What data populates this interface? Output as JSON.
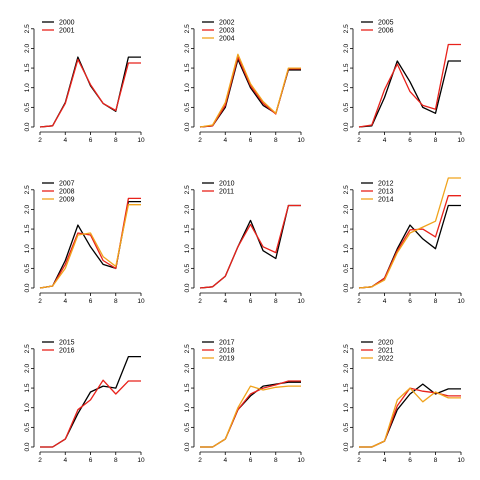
{
  "colors": {
    "black": "#000000",
    "red": "#e8221b",
    "orange": "#f0a31c"
  },
  "chart_data": [
    {
      "type": "line",
      "x": [
        2,
        3,
        4,
        5,
        6,
        7,
        8,
        9,
        10
      ],
      "xticks": [
        2,
        4,
        6,
        8,
        10
      ],
      "yticks": [
        "0.0",
        "0.5",
        "1.0",
        "1.5",
        "2.0",
        "2.5"
      ],
      "xlim": [
        2,
        10
      ],
      "ylim": [
        0,
        2.8
      ],
      "series": [
        {
          "name": "2000",
          "color": "black",
          "values": [
            0.0,
            0.03,
            0.62,
            1.78,
            1.05,
            0.6,
            0.4,
            1.78,
            1.78
          ]
        },
        {
          "name": "2001",
          "color": "red",
          "values": [
            0.0,
            0.03,
            0.6,
            1.72,
            1.08,
            0.6,
            0.42,
            1.63,
            1.63
          ]
        }
      ]
    },
    {
      "type": "line",
      "x": [
        2,
        3,
        4,
        5,
        6,
        7,
        8,
        9,
        10
      ],
      "xticks": [
        2,
        4,
        6,
        8,
        10
      ],
      "yticks": [
        "0.0",
        "0.5",
        "1.0",
        "1.5",
        "2.0",
        "2.5"
      ],
      "xlim": [
        2,
        10
      ],
      "ylim": [
        0,
        2.8
      ],
      "series": [
        {
          "name": "2002",
          "color": "black",
          "values": [
            0.0,
            0.03,
            0.5,
            1.72,
            1.0,
            0.55,
            0.35,
            1.45,
            1.45
          ]
        },
        {
          "name": "2003",
          "color": "red",
          "values": [
            0.0,
            0.03,
            0.55,
            1.78,
            1.05,
            0.6,
            0.33,
            1.48,
            1.48
          ]
        },
        {
          "name": "2004",
          "color": "orange",
          "values": [
            0.0,
            0.05,
            0.62,
            1.85,
            1.1,
            0.65,
            0.35,
            1.5,
            1.5
          ]
        }
      ]
    },
    {
      "type": "line",
      "x": [
        2,
        3,
        4,
        5,
        6,
        7,
        8,
        9,
        10
      ],
      "xticks": [
        2,
        4,
        6,
        8,
        10
      ],
      "yticks": [
        "0.0",
        "0.5",
        "1.0",
        "1.5",
        "2.0",
        "2.5"
      ],
      "xlim": [
        2,
        10
      ],
      "ylim": [
        0,
        2.8
      ],
      "series": [
        {
          "name": "2005",
          "color": "black",
          "values": [
            0.0,
            0.03,
            0.75,
            1.68,
            1.15,
            0.5,
            0.35,
            1.68,
            1.68
          ]
        },
        {
          "name": "2006",
          "color": "red",
          "values": [
            0.0,
            0.05,
            0.95,
            1.6,
            0.9,
            0.55,
            0.45,
            2.1,
            2.1
          ]
        }
      ]
    },
    {
      "type": "line",
      "x": [
        2,
        3,
        4,
        5,
        6,
        7,
        8,
        9,
        10
      ],
      "xticks": [
        2,
        4,
        6,
        8,
        10
      ],
      "yticks": [
        "0.0",
        "0.5",
        "1.0",
        "1.5",
        "2.0",
        "2.5"
      ],
      "xlim": [
        2,
        10
      ],
      "ylim": [
        0,
        2.8
      ],
      "series": [
        {
          "name": "2007",
          "color": "black",
          "values": [
            0.0,
            0.05,
            0.7,
            1.6,
            1.05,
            0.6,
            0.5,
            2.2,
            2.2
          ]
        },
        {
          "name": "2008",
          "color": "red",
          "values": [
            0.0,
            0.05,
            0.6,
            1.4,
            1.35,
            0.7,
            0.5,
            2.28,
            2.28
          ]
        },
        {
          "name": "2009",
          "color": "orange",
          "values": [
            0.0,
            0.05,
            0.5,
            1.35,
            1.4,
            0.8,
            0.55,
            2.12,
            2.12
          ]
        }
      ]
    },
    {
      "type": "line",
      "x": [
        2,
        3,
        4,
        5,
        6,
        7,
        8,
        9,
        10
      ],
      "xticks": [
        2,
        4,
        6,
        8,
        10
      ],
      "yticks": [
        "0.0",
        "0.5",
        "1.0",
        "1.5",
        "2.0",
        "2.5"
      ],
      "xlim": [
        2,
        10
      ],
      "ylim": [
        0,
        2.8
      ],
      "series": [
        {
          "name": "2010",
          "color": "black",
          "values": [
            0.0,
            0.03,
            0.3,
            1.05,
            1.72,
            0.95,
            0.75,
            2.1,
            2.1
          ]
        },
        {
          "name": "2011",
          "color": "red",
          "values": [
            0.0,
            0.03,
            0.3,
            1.05,
            1.62,
            1.05,
            0.9,
            2.1,
            2.1
          ]
        }
      ]
    },
    {
      "type": "line",
      "x": [
        2,
        3,
        4,
        5,
        6,
        7,
        8,
        9,
        10
      ],
      "xticks": [
        2,
        4,
        6,
        8,
        10
      ],
      "yticks": [
        "0.0",
        "0.5",
        "1.0",
        "1.5",
        "2.0",
        "2.5"
      ],
      "xlim": [
        2,
        10
      ],
      "ylim": [
        0,
        2.8
      ],
      "series": [
        {
          "name": "2012",
          "color": "black",
          "values": [
            0.0,
            0.03,
            0.25,
            1.0,
            1.6,
            1.25,
            1.0,
            2.1,
            2.1
          ]
        },
        {
          "name": "2013",
          "color": "red",
          "values": [
            0.0,
            0.03,
            0.25,
            0.95,
            1.48,
            1.5,
            1.3,
            2.35,
            2.35
          ]
        },
        {
          "name": "2014",
          "color": "orange",
          "values": [
            0.0,
            0.03,
            0.2,
            0.9,
            1.4,
            1.55,
            1.7,
            2.8,
            2.8
          ]
        }
      ]
    },
    {
      "type": "line",
      "x": [
        2,
        3,
        4,
        5,
        6,
        7,
        8,
        9,
        10
      ],
      "xticks": [
        2,
        4,
        6,
        8,
        10
      ],
      "yticks": [
        "0.0",
        "0.5",
        "1.0",
        "1.5",
        "2.0",
        "2.5"
      ],
      "xlim": [
        2,
        10
      ],
      "ylim": [
        0,
        2.8
      ],
      "series": [
        {
          "name": "2015",
          "color": "black",
          "values": [
            0.0,
            0.0,
            0.2,
            0.85,
            1.4,
            1.55,
            1.5,
            2.3,
            2.3
          ]
        },
        {
          "name": "2016",
          "color": "red",
          "values": [
            0.0,
            0.0,
            0.2,
            0.95,
            1.2,
            1.7,
            1.35,
            1.68,
            1.68
          ]
        }
      ]
    },
    {
      "type": "line",
      "x": [
        2,
        3,
        4,
        5,
        6,
        7,
        8,
        9,
        10
      ],
      "xticks": [
        2,
        4,
        6,
        8,
        10
      ],
      "yticks": [
        "0.0",
        "0.5",
        "1.0",
        "1.5",
        "2.0",
        "2.5"
      ],
      "xlim": [
        2,
        10
      ],
      "ylim": [
        0,
        2.8
      ],
      "series": [
        {
          "name": "2017",
          "color": "black",
          "values": [
            0.0,
            0.0,
            0.2,
            0.95,
            1.3,
            1.55,
            1.6,
            1.65,
            1.65
          ]
        },
        {
          "name": "2018",
          "color": "red",
          "values": [
            0.0,
            0.0,
            0.2,
            0.95,
            1.35,
            1.5,
            1.58,
            1.68,
            1.68
          ]
        },
        {
          "name": "2019",
          "color": "orange",
          "values": [
            0.0,
            0.0,
            0.2,
            1.0,
            1.55,
            1.45,
            1.52,
            1.55,
            1.55
          ]
        }
      ]
    },
    {
      "type": "line",
      "x": [
        2,
        3,
        4,
        5,
        6,
        7,
        8,
        9,
        10
      ],
      "xticks": [
        2,
        4,
        6,
        8,
        10
      ],
      "yticks": [
        "0.0",
        "0.5",
        "1.0",
        "1.5",
        "2.0",
        "2.5"
      ],
      "xlim": [
        2,
        10
      ],
      "ylim": [
        0,
        2.8
      ],
      "series": [
        {
          "name": "2020",
          "color": "black",
          "values": [
            0.0,
            0.0,
            0.15,
            0.95,
            1.35,
            1.6,
            1.35,
            1.48,
            1.48
          ]
        },
        {
          "name": "2021",
          "color": "red",
          "values": [
            0.0,
            0.0,
            0.15,
            1.05,
            1.5,
            1.42,
            1.38,
            1.3,
            1.3
          ]
        },
        {
          "name": "2022",
          "color": "orange",
          "values": [
            0.0,
            0.0,
            0.15,
            1.2,
            1.5,
            1.15,
            1.4,
            1.25,
            1.25
          ]
        }
      ]
    }
  ]
}
